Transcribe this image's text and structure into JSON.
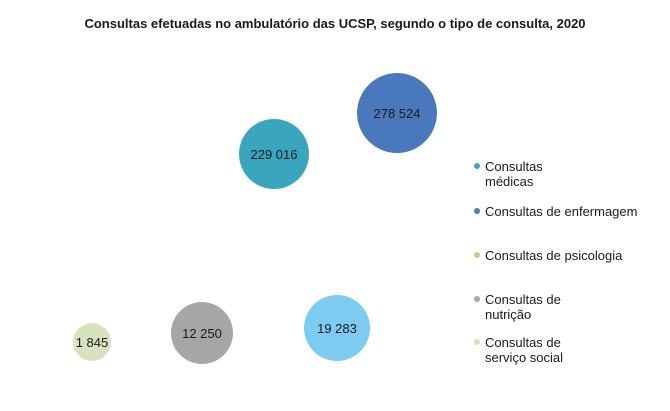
{
  "chart_data": {
    "type": "bubble",
    "title": "Consultas efetuadas no ambulatório das UCSP, segundo o tipo de consulta, 2020",
    "legend_position": "right",
    "series": [
      {
        "name": "Consultas\nmédicas",
        "value": 229016,
        "label": "229 016",
        "color": "#3aa6be"
      },
      {
        "name": "Consultas de enfermagem",
        "value": 278524,
        "label": "278 524",
        "color": "#4a78bd"
      },
      {
        "name": "Consultas de psicologia",
        "value": 1845,
        "label": "1 845",
        "color": "#d7e2bf"
      },
      {
        "name": "Consultas de\nnutrição",
        "value": 12250,
        "label": "12 250",
        "color": "#a6a6a6"
      },
      {
        "name": "Consultas de\nserviço social",
        "value": 19283,
        "label": "19 283",
        "color": "#7ecbf2"
      }
    ],
    "legend_markers": [
      "#3aa6be",
      "#4a78bd",
      "#b8cf8a",
      "#a6a6a6",
      "#d7e2bf"
    ]
  }
}
